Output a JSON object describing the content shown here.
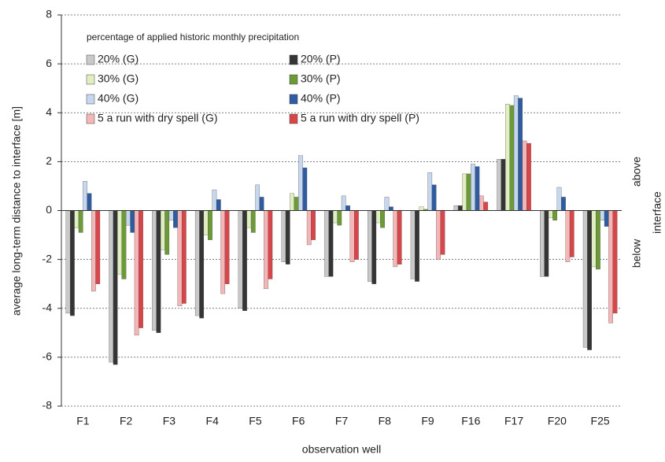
{
  "chart_data": {
    "type": "bar",
    "ylabel": "average long-term distance to interface [m]",
    "xlabel": "observation well",
    "legend_title": "percentage of applied historic monthly precipitation",
    "side_labels": {
      "above": "above",
      "below": "below",
      "axis": "interface"
    },
    "categories": [
      "F1",
      "F2",
      "F3",
      "F4",
      "F5",
      "F6",
      "F7",
      "F8",
      "F9",
      "F16",
      "F17",
      "F20",
      "F25"
    ],
    "series": [
      {
        "name": "20% (G)",
        "color": "#c9c9c9",
        "values": [
          -4.2,
          -6.2,
          -4.9,
          -4.3,
          -4.0,
          -2.1,
          -2.7,
          -2.9,
          -2.8,
          0.2,
          2.1,
          -2.7,
          -5.6
        ]
      },
      {
        "name": "20% (P)",
        "color": "#353535",
        "values": [
          -4.3,
          -6.3,
          -5.0,
          -4.4,
          -4.1,
          -2.2,
          -2.7,
          -3.0,
          -2.9,
          0.2,
          2.1,
          -2.7,
          -5.7
        ]
      },
      {
        "name": "30% (G)",
        "color": "#e0eec2",
        "values": [
          -0.7,
          -2.6,
          -1.6,
          -1.0,
          -0.7,
          0.7,
          -0.5,
          -0.5,
          0.15,
          1.5,
          4.35,
          -0.3,
          -2.3
        ]
      },
      {
        "name": "30% (P)",
        "color": "#6b9a36",
        "values": [
          -0.9,
          -2.8,
          -1.8,
          -1.2,
          -0.9,
          0.55,
          -0.6,
          -0.7,
          0.05,
          1.5,
          4.3,
          -0.4,
          -2.4
        ]
      },
      {
        "name": "40% (G)",
        "color": "#c6d7ee",
        "values": [
          1.2,
          -0.6,
          -0.4,
          0.85,
          1.05,
          2.25,
          0.6,
          0.55,
          1.55,
          1.9,
          4.7,
          0.95,
          -0.4
        ]
      },
      {
        "name": "40% (P)",
        "color": "#2f5ba1",
        "values": [
          0.7,
          -0.9,
          -0.7,
          0.45,
          0.55,
          1.75,
          0.2,
          0.15,
          1.05,
          1.8,
          4.6,
          0.55,
          -0.65
        ]
      },
      {
        "name": "5 a run with dry spell (G)",
        "color": "#f4b6b6",
        "values": [
          -3.3,
          -5.1,
          -3.9,
          -3.4,
          -3.2,
          -1.4,
          -2.1,
          -2.3,
          -2.0,
          0.6,
          2.85,
          -2.1,
          -4.6
        ]
      },
      {
        "name": "5 a run with dry spell (P)",
        "color": "#d8464a",
        "values": [
          -3.0,
          -4.8,
          -3.8,
          -3.0,
          -2.8,
          -1.2,
          -2.0,
          -2.2,
          -1.8,
          0.35,
          2.75,
          -1.9,
          -4.2
        ]
      }
    ],
    "ylim": [
      -8,
      8
    ],
    "yticks": [
      -8,
      -6,
      -4,
      -2,
      0,
      2,
      4,
      6,
      8
    ],
    "grid": true
  }
}
